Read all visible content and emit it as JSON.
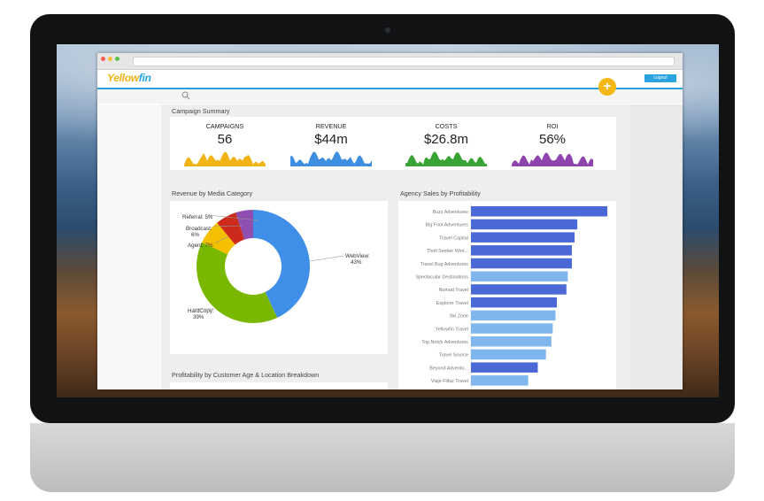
{
  "app": {
    "logo_part1": "Yellow",
    "logo_part2": "fin",
    "logout_label": "Logout",
    "add_label": "+"
  },
  "summary": {
    "title": "Campaign Summary",
    "kpis": [
      {
        "label": "CAMPAIGNS",
        "value": "56",
        "color": "#f2b316"
      },
      {
        "label": "REVENUE",
        "value": "$44m",
        "color": "#3f8fe0"
      },
      {
        "label": "COSTS",
        "value": "$26.8m",
        "color": "#3aa335"
      },
      {
        "label": "ROI",
        "value": "56%",
        "color": "#8e44ad"
      }
    ]
  },
  "media_panel": {
    "title": "Revenue by Media Category",
    "chart_data": {
      "type": "pie",
      "categories": [
        "WebView",
        "HardCopy",
        "Agent",
        "Broadcast",
        "Referral"
      ],
      "values": [
        43,
        39,
        7,
        6,
        5
      ],
      "colors": [
        "#3f8fe8",
        "#7ab800",
        "#f5c000",
        "#cc2a1a",
        "#8e4fb0"
      ],
      "labels": [
        {
          "name": "WebView:",
          "pct": "43%"
        },
        {
          "name": "HardCopy:",
          "pct": "39%"
        },
        {
          "name": "Agent:",
          "pct": "7%"
        },
        {
          "name": "Broadcast:",
          "pct": "6%"
        },
        {
          "name": "Referral:",
          "pct": "5%"
        }
      ]
    }
  },
  "agency_panel": {
    "title": "Agency Sales by Profitability",
    "chart_data": {
      "type": "bar",
      "orientation": "horizontal",
      "categories": [
        "Buzz Adventures",
        "Big Foot Adventures",
        "Travel Capital",
        "Thrill Seeker Wint...",
        "Travel Bug Adventures",
        "Spectacular Destinations",
        "Nomad Travel",
        "Explorer Travel",
        "Ski Zone",
        "Yellowfin Travel",
        "Top Notch Adventures",
        "Travel Source",
        "Beyond Adventu...",
        "Viaje Fillaz Travel"
      ],
      "values": [
        100,
        78,
        76,
        74,
        74,
        71,
        70,
        63,
        62,
        60,
        59,
        55,
        49,
        42
      ],
      "colors": [
        "#4a68d6",
        "#4a68d6",
        "#4a68d6",
        "#4a68d6",
        "#4a68d6",
        "#7fb6ee",
        "#4a68d6",
        "#4a68d6",
        "#7fb6ee",
        "#7fb6ee",
        "#7fb6ee",
        "#7fb6ee",
        "#4a68d6",
        "#7fb6ee"
      ]
    }
  },
  "profit_panel": {
    "title": "Profitability by Customer Age & Location Breakdown"
  }
}
